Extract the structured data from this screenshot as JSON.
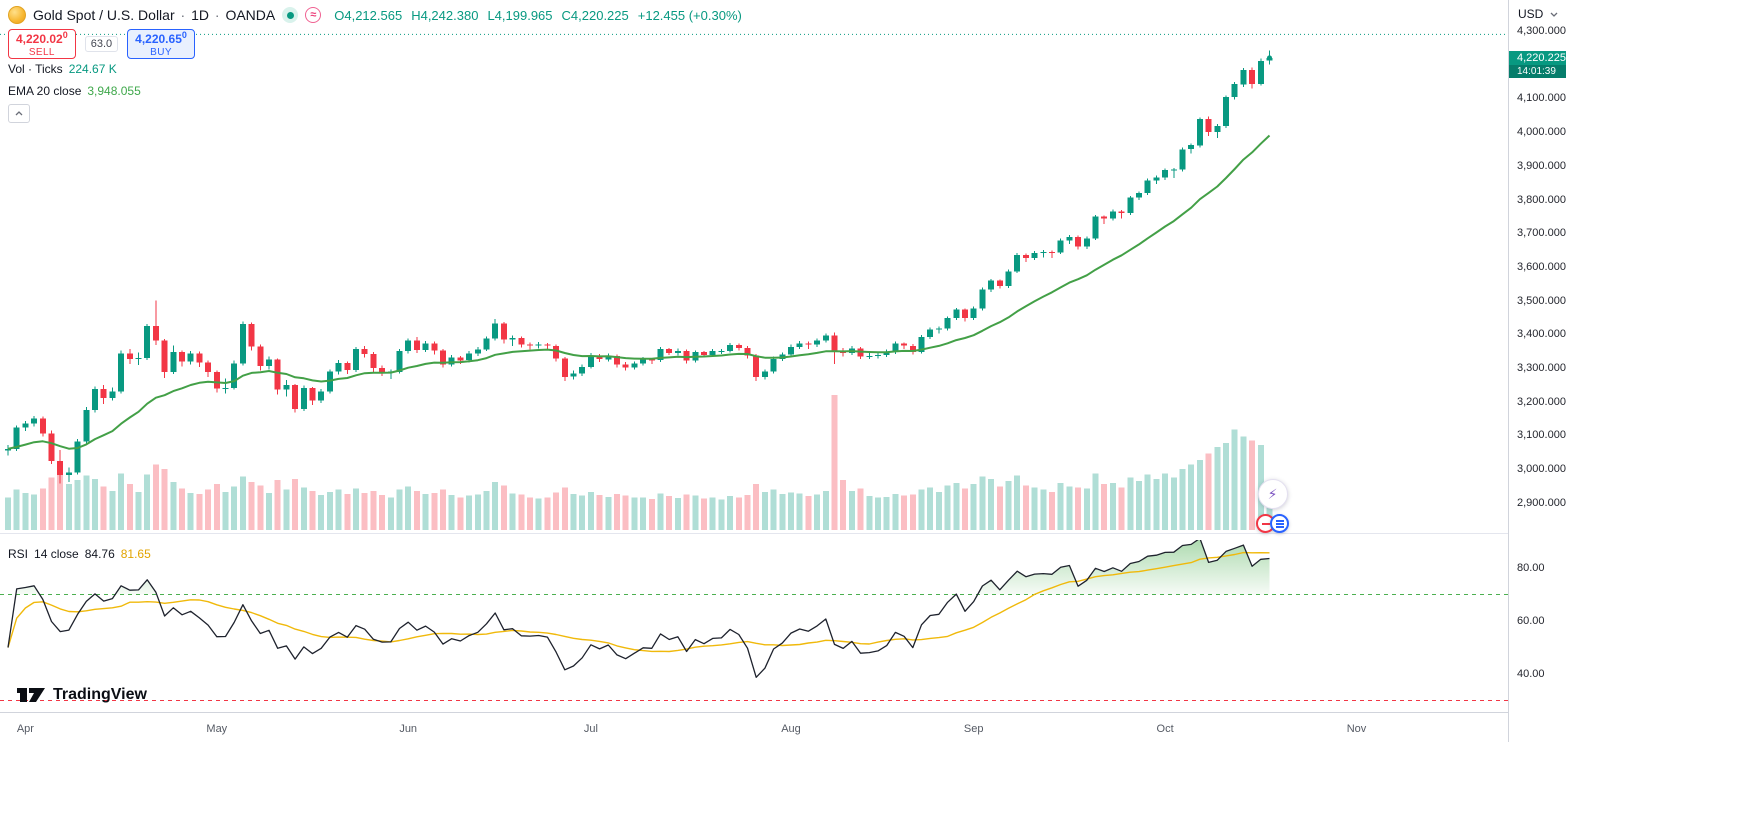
{
  "header": {
    "symbol": "Gold Spot / U.S. Dollar",
    "separator": "·",
    "interval": "1D",
    "exchange": "OANDA",
    "ohlc": {
      "o_label": "O",
      "o": "4,212.565",
      "h_label": "H",
      "h": "4,242.380",
      "l_label": "L",
      "l": "4,199.965",
      "c_label": "C",
      "c": "4,220.225",
      "change": "+12.455 (+0.30%)"
    }
  },
  "trade_panel": {
    "sell_price": "4,220.02",
    "sell_sup": "0",
    "sell_label": "SELL",
    "spread": "63.0",
    "buy_price": "4,220.65",
    "buy_sup": "0",
    "buy_label": "BUY"
  },
  "legend": {
    "volume_label": "Vol · Ticks",
    "volume_value": "224.67 K",
    "ema_label": "EMA 20 close",
    "ema_value": "3,948.055"
  },
  "rsi_panel": {
    "title": "RSI",
    "params": "14 close",
    "value": "84.76",
    "ma_value": "81.65",
    "ticks": [
      80,
      60,
      40
    ],
    "upper_band": 70,
    "lower_band": 30
  },
  "price_axis": {
    "currency": "USD",
    "ticks": [
      4300,
      4100,
      4000,
      3900,
      3800,
      3700,
      3600,
      3500,
      3400,
      3300,
      3200,
      3100,
      3000,
      2900
    ],
    "last_price_badge": "4,220.225",
    "countdown": "14:01:39"
  },
  "time_axis": {
    "months": [
      {
        "label": "Apr",
        "index": 2
      },
      {
        "label": "May",
        "index": 24
      },
      {
        "label": "Jun",
        "index": 46
      },
      {
        "label": "Jul",
        "index": 67
      },
      {
        "label": "Aug",
        "index": 90
      },
      {
        "label": "Sep",
        "index": 111
      },
      {
        "label": "Oct",
        "index": 133
      },
      {
        "label": "Nov",
        "index": 155
      }
    ]
  },
  "watermark": {
    "text": "TradingView"
  },
  "colors": {
    "up": "#089981",
    "down": "#F23645",
    "vol_up": "rgba(8,153,129,0.32)",
    "vol_down": "rgba(242,54,69,0.32)",
    "ema": "#43A047",
    "rsi_line": "#1E222D",
    "rsi_ma": "#F0B90B",
    "band_green": "#4CAF50",
    "band_red": "#F23645",
    "price_line": "#089981"
  },
  "chart_data": {
    "type": "candlestick",
    "title": "Gold Spot / U.S. Dollar 1D OANDA",
    "price_axis_range": [
      2900,
      4300
    ],
    "ema_period": 20,
    "rsi_period": 14,
    "rsi_ma_period": 14,
    "rsi_upper_band": 70,
    "rsi_lower_band": 30,
    "price_line_dotted": 4290,
    "last_close": 4220.225,
    "candles": [
      [
        3055,
        3072,
        3041,
        3060,
        150
      ],
      [
        3060,
        3130,
        3054,
        3123,
        185
      ],
      [
        3123,
        3142,
        3113,
        3135,
        170
      ],
      [
        3135,
        3158,
        3127,
        3150,
        162
      ],
      [
        3150,
        3156,
        3097,
        3106,
        190
      ],
      [
        3106,
        3114,
        3015,
        3024,
        240
      ],
      [
        3024,
        3056,
        2957,
        2982,
        290
      ],
      [
        2982,
        3005,
        2961,
        2990,
        210
      ],
      [
        2990,
        3090,
        2984,
        3082,
        230
      ],
      [
        3082,
        3184,
        3071,
        3175,
        250
      ],
      [
        3175,
        3245,
        3168,
        3238,
        235
      ],
      [
        3238,
        3249,
        3193,
        3211,
        200
      ],
      [
        3211,
        3242,
        3203,
        3230,
        180
      ],
      [
        3230,
        3352,
        3225,
        3343,
        260
      ],
      [
        3343,
        3357,
        3312,
        3327,
        210
      ],
      [
        3327,
        3346,
        3309,
        3330,
        175
      ],
      [
        3330,
        3430,
        3324,
        3424,
        255
      ],
      [
        3424,
        3500,
        3368,
        3381,
        300
      ],
      [
        3381,
        3386,
        3271,
        3288,
        280
      ],
      [
        3288,
        3367,
        3282,
        3348,
        220
      ],
      [
        3348,
        3352,
        3305,
        3319,
        190
      ],
      [
        3319,
        3351,
        3310,
        3343,
        170
      ],
      [
        3343,
        3349,
        3303,
        3317,
        165
      ],
      [
        3317,
        3322,
        3274,
        3288,
        185
      ],
      [
        3288,
        3292,
        3228,
        3239,
        210
      ],
      [
        3239,
        3269,
        3225,
        3240,
        175
      ],
      [
        3240,
        3322,
        3236,
        3314,
        200
      ],
      [
        3314,
        3438,
        3308,
        3431,
        245
      ],
      [
        3431,
        3435,
        3352,
        3364,
        220
      ],
      [
        3364,
        3370,
        3292,
        3306,
        205
      ],
      [
        3306,
        3334,
        3296,
        3325,
        170
      ],
      [
        3325,
        3328,
        3222,
        3236,
        230
      ],
      [
        3236,
        3265,
        3216,
        3249,
        185
      ],
      [
        3249,
        3252,
        3168,
        3178,
        235
      ],
      [
        3178,
        3248,
        3172,
        3240,
        195
      ],
      [
        3240,
        3244,
        3190,
        3204,
        180
      ],
      [
        3204,
        3237,
        3196,
        3230,
        160
      ],
      [
        3230,
        3295,
        3224,
        3289,
        175
      ],
      [
        3289,
        3324,
        3281,
        3315,
        185
      ],
      [
        3315,
        3320,
        3282,
        3294,
        165
      ],
      [
        3294,
        3363,
        3288,
        3357,
        190
      ],
      [
        3357,
        3366,
        3331,
        3342,
        170
      ],
      [
        3342,
        3348,
        3288,
        3300,
        180
      ],
      [
        3300,
        3307,
        3276,
        3288,
        160
      ],
      [
        3288,
        3296,
        3268,
        3289,
        150
      ],
      [
        3289,
        3356,
        3284,
        3350,
        185
      ],
      [
        3350,
        3388,
        3343,
        3381,
        200
      ],
      [
        3381,
        3392,
        3345,
        3353,
        180
      ],
      [
        3353,
        3380,
        3347,
        3372,
        165
      ],
      [
        3372,
        3378,
        3340,
        3352,
        170
      ],
      [
        3352,
        3356,
        3301,
        3310,
        185
      ],
      [
        3310,
        3338,
        3304,
        3331,
        160
      ],
      [
        3331,
        3336,
        3312,
        3323,
        150
      ],
      [
        3323,
        3350,
        3317,
        3343,
        158
      ],
      [
        3343,
        3362,
        3336,
        3355,
        162
      ],
      [
        3355,
        3394,
        3350,
        3387,
        178
      ],
      [
        3387,
        3446,
        3381,
        3432,
        220
      ],
      [
        3432,
        3436,
        3372,
        3385,
        205
      ],
      [
        3385,
        3397,
        3366,
        3389,
        168
      ],
      [
        3389,
        3393,
        3361,
        3369,
        162
      ],
      [
        3369,
        3376,
        3355,
        3368,
        150
      ],
      [
        3368,
        3377,
        3358,
        3370,
        145
      ],
      [
        3370,
        3374,
        3354,
        3366,
        148
      ],
      [
        3366,
        3369,
        3320,
        3328,
        172
      ],
      [
        3328,
        3333,
        3262,
        3274,
        195
      ],
      [
        3274,
        3292,
        3266,
        3283,
        165
      ],
      [
        3283,
        3310,
        3277,
        3303,
        158
      ],
      [
        3303,
        3345,
        3298,
        3337,
        175
      ],
      [
        3337,
        3342,
        3318,
        3326,
        160
      ],
      [
        3326,
        3343,
        3319,
        3336,
        152
      ],
      [
        3336,
        3340,
        3302,
        3311,
        165
      ],
      [
        3311,
        3318,
        3293,
        3301,
        158
      ],
      [
        3301,
        3320,
        3295,
        3313,
        148
      ],
      [
        3313,
        3332,
        3307,
        3325,
        150
      ],
      [
        3325,
        3330,
        3312,
        3324,
        142
      ],
      [
        3324,
        3362,
        3318,
        3356,
        168
      ],
      [
        3356,
        3360,
        3338,
        3345,
        155
      ],
      [
        3345,
        3358,
        3337,
        3351,
        146
      ],
      [
        3351,
        3355,
        3314,
        3322,
        162
      ],
      [
        3322,
        3352,
        3316,
        3347,
        158
      ],
      [
        3347,
        3351,
        3331,
        3339,
        145
      ],
      [
        3339,
        3356,
        3333,
        3350,
        148
      ],
      [
        3350,
        3357,
        3342,
        3351,
        140
      ],
      [
        3351,
        3374,
        3346,
        3368,
        155
      ],
      [
        3368,
        3372,
        3352,
        3360,
        150
      ],
      [
        3360,
        3365,
        3328,
        3337,
        160
      ],
      [
        3337,
        3341,
        3262,
        3273,
        210
      ],
      [
        3273,
        3296,
        3266,
        3289,
        175
      ],
      [
        3289,
        3334,
        3284,
        3327,
        185
      ],
      [
        3327,
        3346,
        3321,
        3340,
        165
      ],
      [
        3340,
        3369,
        3335,
        3363,
        172
      ],
      [
        3363,
        3380,
        3357,
        3373,
        168
      ],
      [
        3373,
        3378,
        3356,
        3369,
        155
      ],
      [
        3369,
        3388,
        3363,
        3381,
        162
      ],
      [
        3381,
        3403,
        3376,
        3397,
        180
      ],
      [
        3397,
        3405,
        3312,
        3352,
        620
      ],
      [
        3352,
        3360,
        3334,
        3344,
        230
      ],
      [
        3344,
        3365,
        3338,
        3358,
        180
      ],
      [
        3358,
        3362,
        3327,
        3335,
        190
      ],
      [
        3335,
        3344,
        3326,
        3336,
        155
      ],
      [
        3336,
        3346,
        3328,
        3339,
        148
      ],
      [
        3339,
        3355,
        3333,
        3348,
        152
      ],
      [
        3348,
        3379,
        3342,
        3372,
        165
      ],
      [
        3372,
        3376,
        3356,
        3366,
        158
      ],
      [
        3366,
        3371,
        3340,
        3348,
        162
      ],
      [
        3348,
        3398,
        3343,
        3392,
        185
      ],
      [
        3392,
        3420,
        3386,
        3414,
        195
      ],
      [
        3414,
        3423,
        3402,
        3417,
        175
      ],
      [
        3417,
        3453,
        3412,
        3448,
        205
      ],
      [
        3448,
        3478,
        3442,
        3473,
        215
      ],
      [
        3473,
        3477,
        3438,
        3448,
        190
      ],
      [
        3448,
        3482,
        3443,
        3476,
        210
      ],
      [
        3476,
        3539,
        3470,
        3533,
        245
      ],
      [
        3533,
        3564,
        3526,
        3559,
        235
      ],
      [
        3559,
        3563,
        3536,
        3544,
        200
      ],
      [
        3544,
        3592,
        3538,
        3587,
        225
      ],
      [
        3587,
        3641,
        3582,
        3636,
        250
      ],
      [
        3636,
        3640,
        3614,
        3627,
        205
      ],
      [
        3627,
        3647,
        3620,
        3641,
        195
      ],
      [
        3641,
        3650,
        3628,
        3644,
        185
      ],
      [
        3644,
        3648,
        3626,
        3643,
        175
      ],
      [
        3643,
        3684,
        3638,
        3679,
        215
      ],
      [
        3679,
        3694,
        3668,
        3689,
        200
      ],
      [
        3689,
        3693,
        3651,
        3660,
        195
      ],
      [
        3660,
        3690,
        3653,
        3685,
        190
      ],
      [
        3685,
        3754,
        3680,
        3749,
        260
      ],
      [
        3749,
        3753,
        3727,
        3744,
        210
      ],
      [
        3744,
        3770,
        3738,
        3765,
        215
      ],
      [
        3765,
        3769,
        3744,
        3760,
        195
      ],
      [
        3760,
        3811,
        3754,
        3806,
        240
      ],
      [
        3806,
        3824,
        3798,
        3819,
        225
      ],
      [
        3819,
        3862,
        3813,
        3857,
        255
      ],
      [
        3857,
        3871,
        3846,
        3865,
        235
      ],
      [
        3865,
        3892,
        3858,
        3887,
        260
      ],
      [
        3887,
        3894,
        3864,
        3889,
        240
      ],
      [
        3889,
        3954,
        3883,
        3949,
        280
      ],
      [
        3949,
        3966,
        3936,
        3961,
        300
      ],
      [
        3961,
        4044,
        3955,
        4039,
        320
      ],
      [
        4039,
        4046,
        3988,
        4000,
        350
      ],
      [
        4000,
        4024,
        3982,
        4018,
        380
      ],
      [
        4018,
        4109,
        4012,
        4104,
        400
      ],
      [
        4104,
        4148,
        4096,
        4142,
        460
      ],
      [
        4142,
        4190,
        4134,
        4185,
        430
      ],
      [
        4185,
        4192,
        4130,
        4143,
        410
      ],
      [
        4143,
        4218,
        4138,
        4211,
        390
      ],
      [
        4212.565,
        4242.38,
        4199.965,
        4220.225,
        224.67
      ]
    ]
  }
}
